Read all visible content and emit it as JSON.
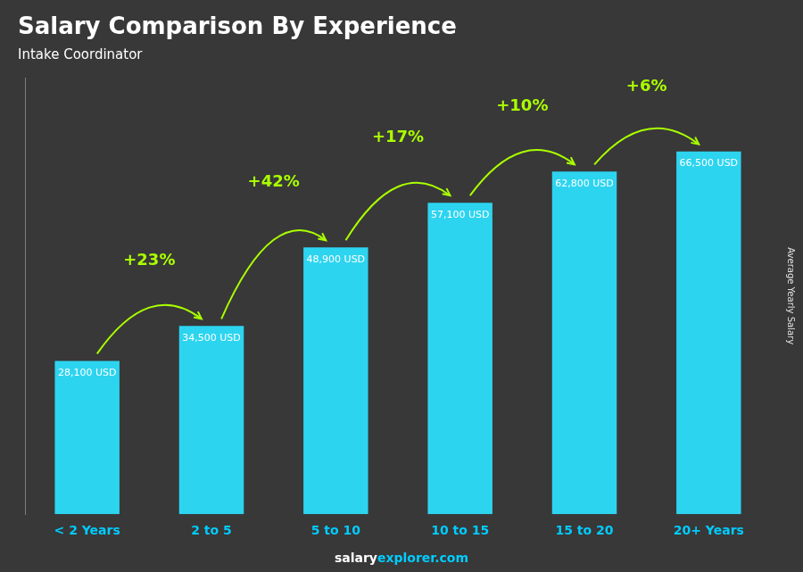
{
  "chart_data": {
    "type": "bar",
    "title": "Salary Comparison By Experience",
    "subtitle": "Intake Coordinator",
    "ylabel": "Average Yearly Salary",
    "categories": [
      "< 2 Years",
      "2 to 5",
      "5 to 10",
      "10 to 15",
      "15 to 20",
      "20+ Years"
    ],
    "values": [
      28100,
      34500,
      48900,
      57100,
      62800,
      66500
    ],
    "value_labels": [
      "28,100 USD",
      "34,500 USD",
      "48,900 USD",
      "57,100 USD",
      "62,800 USD",
      "66,500 USD"
    ],
    "data_labels": true,
    "color": "#2dd4f0",
    "ylim": [
      0,
      80000
    ],
    "grid": false,
    "tick_labels": "x",
    "annotations": [
      {
        "text": "+23%",
        "color": "#aaff00"
      },
      {
        "text": "+42%",
        "color": "#aaff00"
      },
      {
        "text": "+17%",
        "color": "#aaff00"
      },
      {
        "text": "+10%",
        "color": "#aaff00"
      },
      {
        "text": "+6%",
        "color": "#aaff00"
      }
    ],
    "footer": [
      {
        "text": "salary",
        "color": "#ffffff"
      },
      {
        "text": "explorer.com",
        "color": "#00ccff"
      }
    ]
  }
}
